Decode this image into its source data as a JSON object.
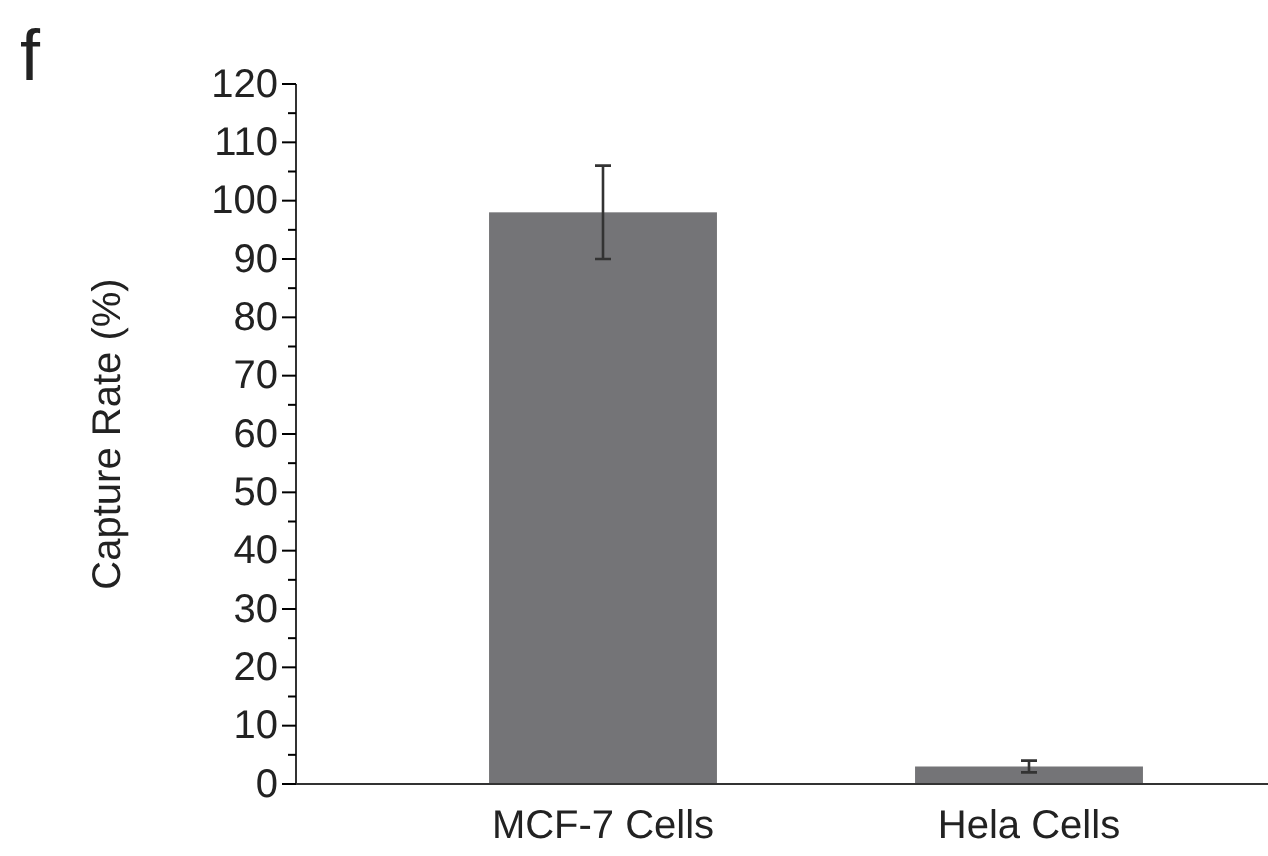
{
  "chart_data": {
    "type": "bar",
    "ylabel": "Capture Rate (%)",
    "annotations": [
      "f"
    ],
    "categories": [
      "MCF-7 Cells",
      "Hela Cells"
    ],
    "values": [
      98,
      3
    ],
    "errors": [
      [
        90,
        106
      ],
      [
        2,
        4
      ]
    ],
    "color": "#747477",
    "ylim": [
      0,
      120
    ],
    "yticks": [
      0,
      {
        "value": 5,
        "label": null
      },
      10,
      {
        "value": 15,
        "label": null
      },
      20,
      {
        "value": 25,
        "label": null
      },
      30,
      {
        "value": 35,
        "label": null
      },
      40,
      {
        "value": 45,
        "label": null
      },
      50,
      {
        "value": 55,
        "label": null
      },
      60,
      {
        "value": 65,
        "label": null
      },
      70,
      {
        "value": 75,
        "label": null
      },
      80,
      {
        "value": 85,
        "label": null
      },
      90,
      {
        "value": 95,
        "label": null
      },
      100,
      {
        "value": 105,
        "label": null
      },
      110,
      {
        "value": 115,
        "label": null
      },
      120
    ],
    "grid": false
  }
}
